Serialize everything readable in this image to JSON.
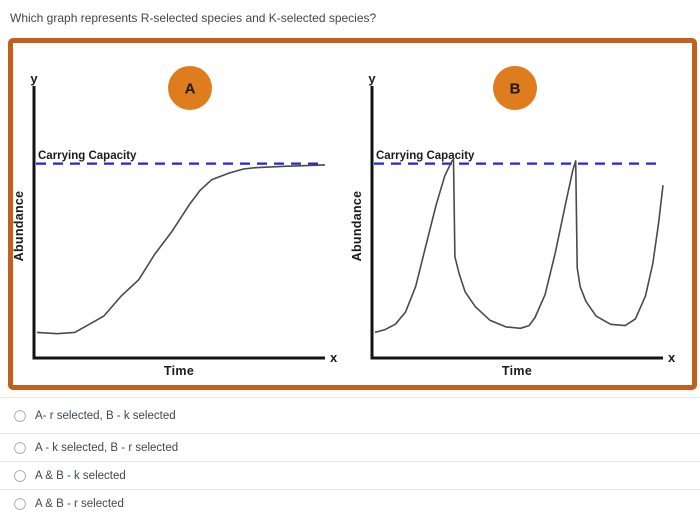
{
  "question": "Which graph represents R-selected species and K-selected species?",
  "colors": {
    "frame_orange": "#C2601E",
    "badge_orange": "#DE7C1E",
    "badge_text": "#FDF7EC",
    "cc_blue": "#2626CE",
    "curve_gray": "#4a4a4a",
    "axis_black": "#141414",
    "question_text": "#42464b",
    "option_text": "#3f4852",
    "separator": "#e9e9e9"
  },
  "chart_data": [
    {
      "type": "line",
      "title": "A",
      "xlabel": "Time",
      "ylabel": "Abundance",
      "x_axis_letter": "x",
      "y_axis_letter": "y",
      "xlim": [
        0,
        10
      ],
      "ylim": [
        0,
        10
      ],
      "grid": false,
      "legend": "none",
      "carrying_capacity": {
        "label": "Carrying Capacity",
        "value": 7.2
      },
      "series": [
        {
          "name": "Abundance (logistic S-curve leveling at carrying capacity)",
          "points": [
            [
              0.1,
              0.95
            ],
            [
              0.8,
              0.9
            ],
            [
              1.4,
              0.95
            ],
            [
              1.9,
              1.25
            ],
            [
              2.4,
              1.55
            ],
            [
              3.0,
              2.3
            ],
            [
              3.6,
              2.9
            ],
            [
              4.15,
              3.85
            ],
            [
              4.75,
              4.7
            ],
            [
              5.35,
              5.7
            ],
            [
              5.7,
              6.2
            ],
            [
              6.1,
              6.6
            ],
            [
              6.7,
              6.85
            ],
            [
              7.2,
              7.0
            ],
            [
              7.6,
              7.05
            ],
            [
              8.6,
              7.1
            ],
            [
              10,
              7.15
            ]
          ]
        }
      ]
    },
    {
      "type": "line",
      "title": "B",
      "xlabel": "Time",
      "ylabel": "Abundance",
      "x_axis_letter": "x",
      "y_axis_letter": "y",
      "xlim": [
        0,
        10
      ],
      "ylim": [
        0,
        10
      ],
      "grid": false,
      "legend": "none",
      "carrying_capacity": {
        "label": "Carrying Capacity",
        "value": 7.2
      },
      "series": [
        {
          "name": "Abundance (boom-and-bust cycles peaking at carrying capacity then crashing)",
          "points": [
            [
              0.1,
              0.95
            ],
            [
              0.45,
              1.05
            ],
            [
              0.8,
              1.25
            ],
            [
              1.15,
              1.7
            ],
            [
              1.5,
              2.65
            ],
            [
              1.85,
              4.15
            ],
            [
              2.2,
              5.65
            ],
            [
              2.5,
              6.75
            ],
            [
              2.75,
              7.3
            ],
            [
              2.8,
              7.35
            ],
            [
              2.85,
              3.75
            ],
            [
              3.0,
              3.1
            ],
            [
              3.2,
              2.45
            ],
            [
              3.55,
              1.9
            ],
            [
              4.05,
              1.4
            ],
            [
              4.6,
              1.15
            ],
            [
              5.1,
              1.1
            ],
            [
              5.4,
              1.2
            ],
            [
              5.6,
              1.5
            ],
            [
              5.95,
              2.35
            ],
            [
              6.3,
              3.9
            ],
            [
              6.65,
              5.7
            ],
            [
              6.9,
              6.95
            ],
            [
              7.0,
              7.3
            ],
            [
              7.05,
              3.35
            ],
            [
              7.15,
              2.65
            ],
            [
              7.35,
              2.1
            ],
            [
              7.7,
              1.55
            ],
            [
              8.2,
              1.25
            ],
            [
              8.7,
              1.2
            ],
            [
              9.05,
              1.45
            ],
            [
              9.4,
              2.3
            ],
            [
              9.65,
              3.5
            ],
            [
              9.85,
              5.0
            ],
            [
              10.0,
              6.4
            ]
          ]
        }
      ]
    }
  ],
  "options": [
    {
      "label": "A- r selected, B - k selected"
    },
    {
      "label": "A - k selected, B - r selected"
    },
    {
      "label": "A & B - k selected"
    },
    {
      "label": "A & B - r selected"
    }
  ]
}
